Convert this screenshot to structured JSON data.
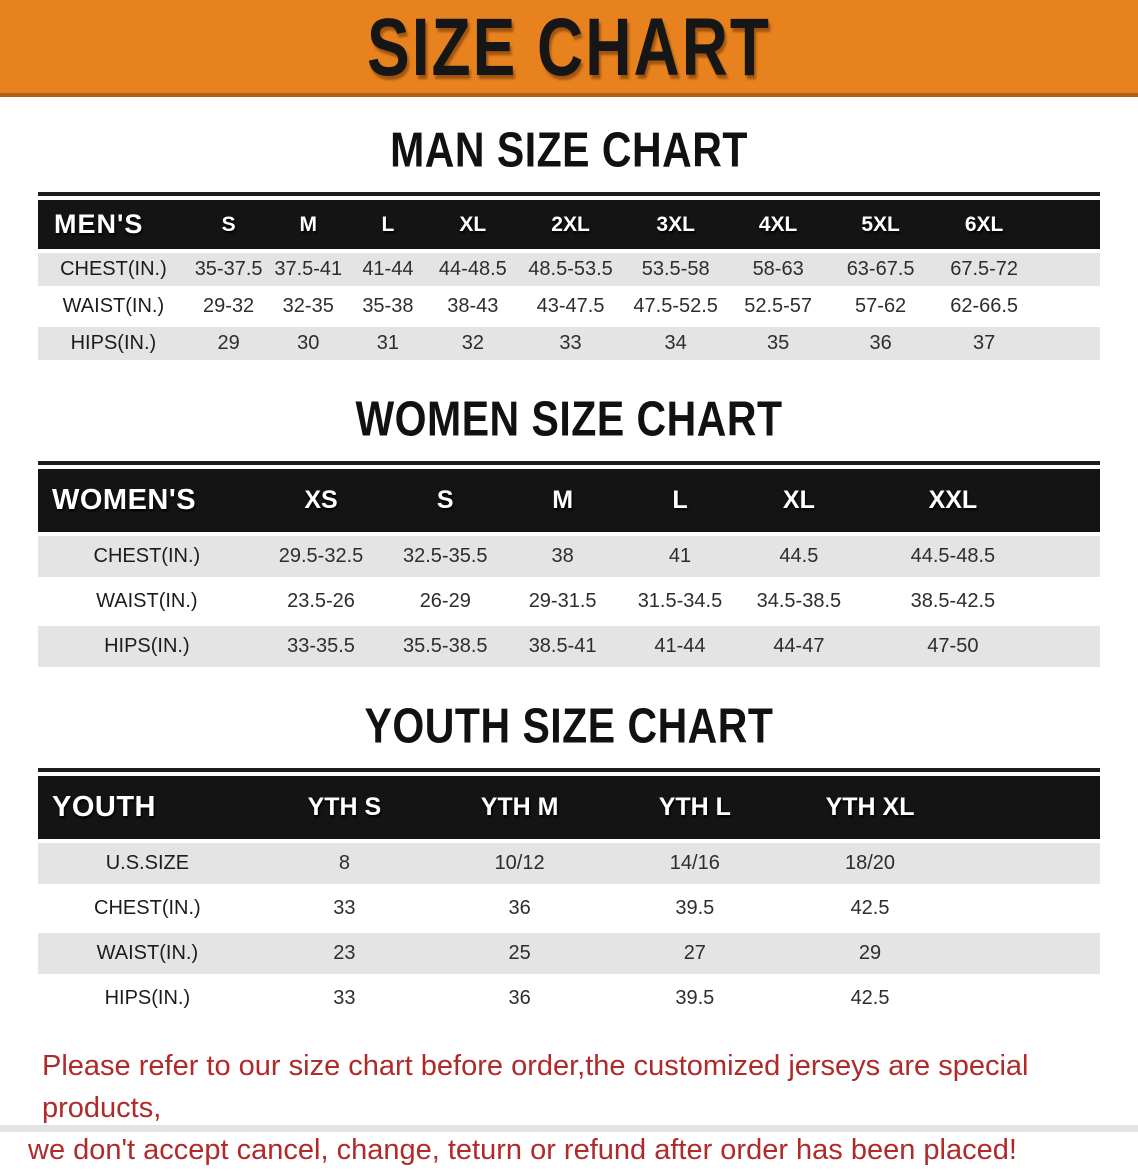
{
  "banner": {
    "title": "SIZE CHART"
  },
  "colors": {
    "banner_bg": "#E8821E",
    "banner_edge": "#B26112",
    "table_band_bg": "#141414",
    "row_stripe": "#E4E4E4",
    "footer_text": "#B02A2A"
  },
  "sections": [
    {
      "heading": "MAN SIZE CHART",
      "table": {
        "group_label": "MEN'S",
        "sizes": [
          "S",
          "M",
          "L",
          "XL",
          "2XL",
          "3XL",
          "4XL",
          "5XL",
          "6XL"
        ],
        "rows": [
          {
            "label": "CHEST(IN.)",
            "values": [
              "35-37.5",
              "37.5-41",
              "41-44",
              "44-48.5",
              "48.5-53.5",
              "53.5-58",
              "58-63",
              "63-67.5",
              "67.5-72"
            ]
          },
          {
            "label": "WAIST(IN.)",
            "values": [
              "29-32",
              "32-35",
              "35-38",
              "38-43",
              "43-47.5",
              "47.5-52.5",
              "52.5-57",
              "57-62",
              "62-66.5"
            ]
          },
          {
            "label": "HIPS(IN.)",
            "values": [
              "29",
              "30",
              "31",
              "32",
              "33",
              "34",
              "35",
              "36",
              "37"
            ]
          }
        ]
      }
    },
    {
      "heading": "WOMEN SIZE CHART",
      "table": {
        "group_label": "WOMEN'S",
        "sizes": [
          "XS",
          "S",
          "M",
          "L",
          "XL",
          "XXL"
        ],
        "rows": [
          {
            "label": "CHEST(IN.)",
            "values": [
              "29.5-32.5",
              "32.5-35.5",
              "38",
              "41",
              "44.5",
              "44.5-48.5"
            ]
          },
          {
            "label": "WAIST(IN.)",
            "values": [
              "23.5-26",
              "26-29",
              "29-31.5",
              "31.5-34.5",
              "34.5-38.5",
              "38.5-42.5"
            ]
          },
          {
            "label": "HIPS(IN.)",
            "values": [
              "33-35.5",
              "35.5-38.5",
              "38.5-41",
              "41-44",
              "44-47",
              "47-50"
            ]
          }
        ]
      }
    },
    {
      "heading": "YOUTH SIZE CHART",
      "table": {
        "group_label": "YOUTH",
        "sizes": [
          "YTH S",
          "YTH M",
          "YTH L",
          "YTH XL"
        ],
        "rows": [
          {
            "label": "U.S.SIZE",
            "values": [
              "8",
              "10/12",
              "14/16",
              "18/20"
            ]
          },
          {
            "label": "CHEST(IN.)",
            "values": [
              "33",
              "36",
              "39.5",
              "42.5"
            ]
          },
          {
            "label": "WAIST(IN.)",
            "values": [
              "23",
              "25",
              "27",
              "29"
            ]
          },
          {
            "label": "HIPS(IN.)",
            "values": [
              "33",
              "36",
              "39.5",
              "42.5"
            ]
          }
        ]
      }
    }
  ],
  "footer": {
    "line1": "Please refer to our size chart before order,the customized jerseys are special products,",
    "line2": "we don't accept cancel, change, teturn or refund after order has been placed!"
  }
}
